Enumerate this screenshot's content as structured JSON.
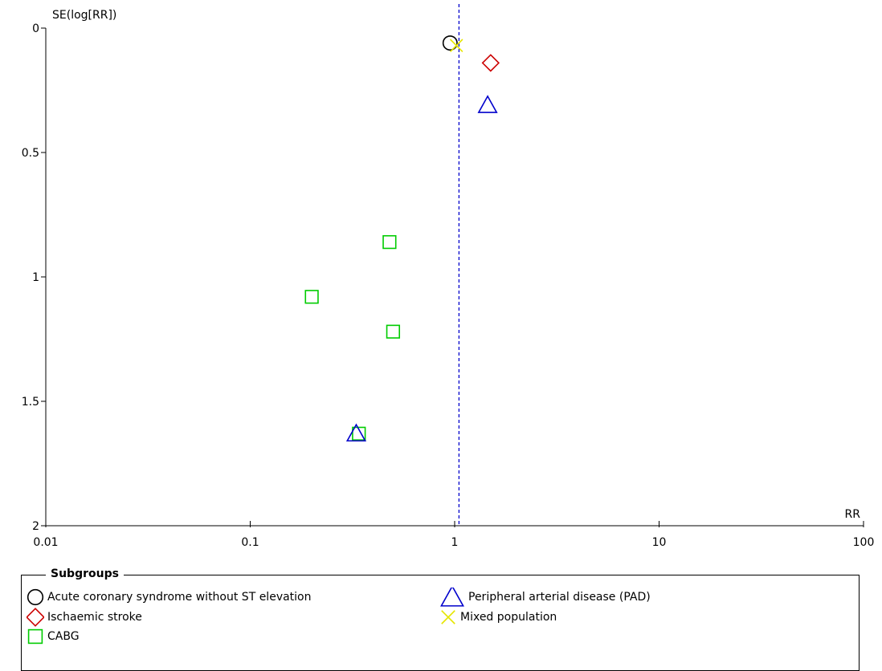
{
  "chart_data": {
    "type": "scatter",
    "title": "",
    "ylabel": "SE(log[RR])",
    "xlabel": "RR",
    "x_scale": "log",
    "xlim": [
      0.01,
      100
    ],
    "ylim": [
      0,
      2
    ],
    "y_inverted": true,
    "x_ticks": [
      "0.01",
      "0.1",
      "1",
      "10",
      "100"
    ],
    "y_ticks": [
      "0",
      "0.5",
      "1",
      "1.5",
      "2"
    ],
    "reference_line": {
      "x": 1.05,
      "style": "dashed",
      "color": "#0000cc"
    },
    "legend_title": "Subgroups",
    "series": [
      {
        "name": "Acute coronary syndrome without ST elevation",
        "marker": "circle",
        "color": "#000000",
        "points": [
          {
            "x": 0.95,
            "y": 0.06
          }
        ]
      },
      {
        "name": "Ischaemic stroke",
        "marker": "diamond",
        "color": "#cc0000",
        "points": [
          {
            "x": 1.5,
            "y": 0.14
          }
        ]
      },
      {
        "name": "CABG",
        "marker": "square",
        "color": "#00cc00",
        "points": [
          {
            "x": 0.48,
            "y": 0.86
          },
          {
            "x": 0.2,
            "y": 1.08
          },
          {
            "x": 0.5,
            "y": 1.22
          },
          {
            "x": 0.34,
            "y": 1.63
          }
        ]
      },
      {
        "name": "Peripheral arterial disease (PAD)",
        "marker": "triangle",
        "color": "#0000cc",
        "points": [
          {
            "x": 1.45,
            "y": 0.31
          },
          {
            "x": 0.33,
            "y": 1.63
          }
        ]
      },
      {
        "name": "Mixed population",
        "marker": "x",
        "color": "#e6e600",
        "points": [
          {
            "x": 1.02,
            "y": 0.07
          }
        ]
      }
    ]
  }
}
